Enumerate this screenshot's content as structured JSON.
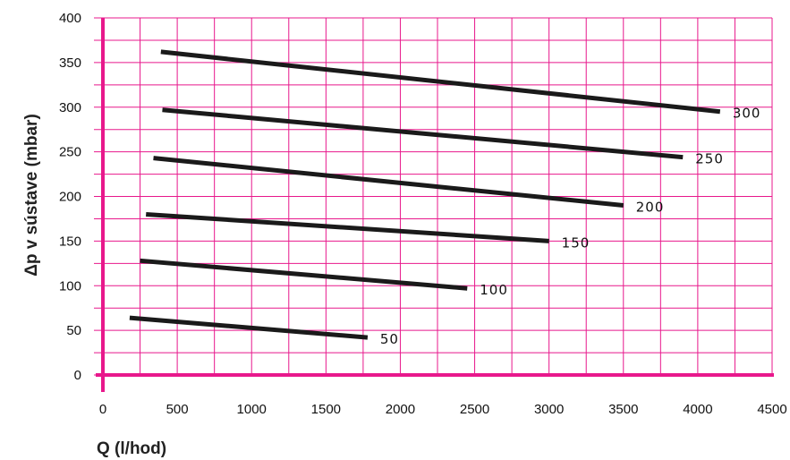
{
  "chart_data": {
    "type": "line",
    "xlabel": "Q (l/hod)",
    "ylabel": "Δp v sústave (mbar)",
    "xlim": [
      0,
      4500
    ],
    "ylim": [
      0,
      400
    ],
    "x_ticks": [
      "0",
      "500",
      "1000",
      "1500",
      "2000",
      "2500",
      "3000",
      "3500",
      "4000",
      "4500"
    ],
    "y_ticks": [
      "0",
      "50",
      "100",
      "150",
      "200",
      "250",
      "300",
      "350",
      "400"
    ],
    "grid": true,
    "colors": {
      "grid": "#e8188c",
      "series": "#1a1a1a",
      "axis": "#e8188c"
    },
    "series": [
      {
        "name": "50",
        "x": [
          180,
          1780
        ],
        "y": [
          64,
          42
        ]
      },
      {
        "name": "100",
        "x": [
          250,
          2450
        ],
        "y": [
          128,
          97
        ]
      },
      {
        "name": "150",
        "x": [
          290,
          3000
        ],
        "y": [
          180,
          150
        ]
      },
      {
        "name": "200",
        "x": [
          340,
          3500
        ],
        "y": [
          243,
          190
        ]
      },
      {
        "name": "250",
        "x": [
          400,
          3900
        ],
        "y": [
          297,
          244
        ]
      },
      {
        "name": "300",
        "x": [
          390,
          4150
        ],
        "y": [
          362,
          295
        ]
      }
    ]
  }
}
